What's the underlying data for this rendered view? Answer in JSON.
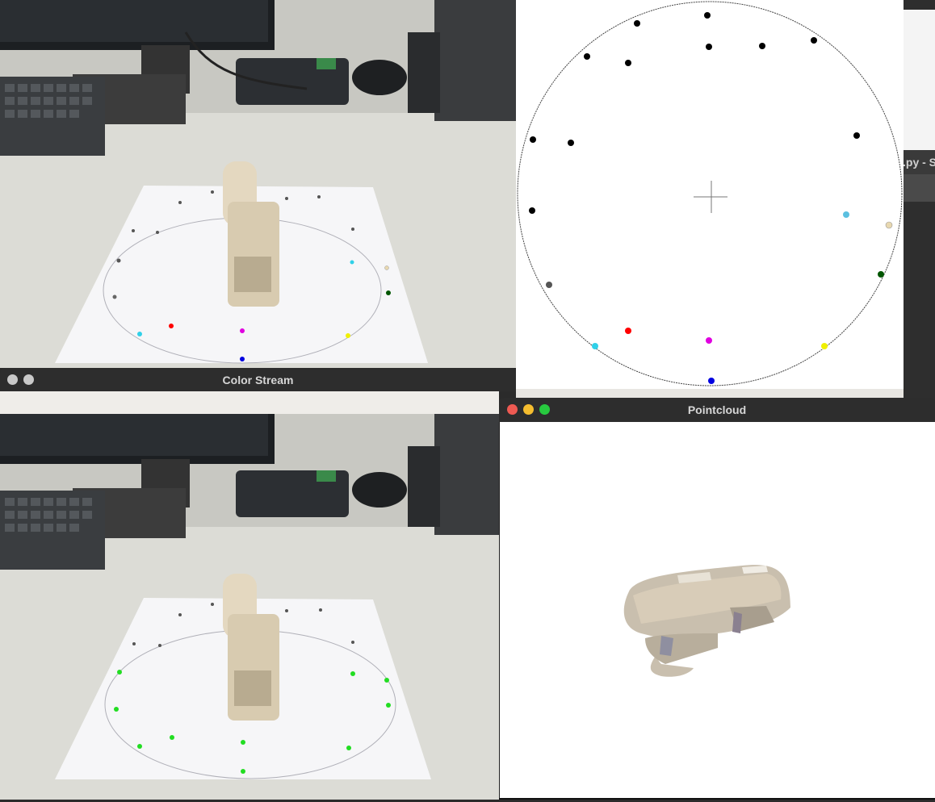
{
  "windows": {
    "color_stream": {
      "title": "Color Stream"
    },
    "pointcloud": {
      "title": "Pointcloud"
    },
    "background_editor": {
      "title_fragment": ".py - S"
    }
  },
  "colors": {
    "titlebar": "#2d2d2d",
    "close": "#ee5a52",
    "minimize": "#f5bd2f",
    "maximize": "#27c93f",
    "inactive_button": "#c9c9c9",
    "marker_red": "#ff0000",
    "marker_magenta": "#e000e0",
    "marker_cyan": "#30d0e8",
    "marker_yellow": "#f0f000",
    "marker_blue": "#0000e0",
    "marker_green": "#22dd22",
    "marker_dark_green": "#005500",
    "marker_gray": "#555555",
    "marker_beige": "#e8d8b0",
    "paper": "#f6f6f8",
    "desk": "#dcdcd6",
    "stapler": "#e4d8c0"
  }
}
